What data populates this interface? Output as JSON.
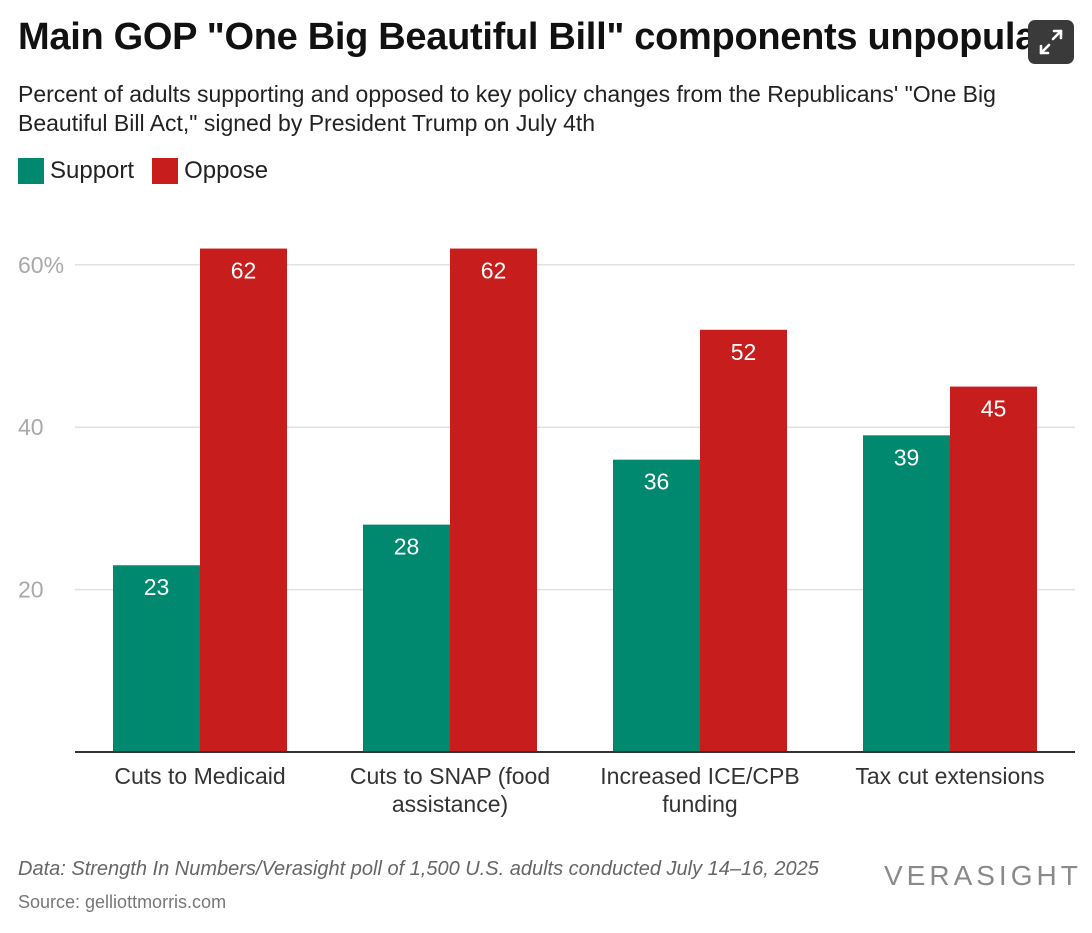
{
  "header": {
    "title": "Main GOP \"One Big Beautiful Bill\" components unpopular",
    "subtitle": "Percent of adults supporting and opposed to key policy changes from the Republicans' \"One Big Beautiful Bill Act,\" signed by President Trump on July 4th",
    "expand_icon": "expand-arrows-icon"
  },
  "legend": {
    "support_label": "Support",
    "oppose_label": "Oppose"
  },
  "colors": {
    "support": "#00896f",
    "oppose": "#c71e1d",
    "grid": "#e2e2e2",
    "axis_text": "#a9a9a9",
    "baseline": "#333333"
  },
  "chart_data": {
    "type": "bar",
    "categories": [
      "Cuts to Medicaid",
      "Cuts to SNAP (food assistance)",
      "Increased ICE/CPB funding",
      "Tax cut extensions"
    ],
    "category_lines": [
      [
        "Cuts to Medicaid"
      ],
      [
        "Cuts to SNAP (food",
        "assistance)"
      ],
      [
        "Increased ICE/CPB",
        "funding"
      ],
      [
        "Tax cut extensions"
      ]
    ],
    "series": [
      {
        "name": "Support",
        "values": [
          23,
          28,
          36,
          39
        ]
      },
      {
        "name": "Oppose",
        "values": [
          62,
          62,
          52,
          45
        ]
      }
    ],
    "yticks": [
      20,
      40,
      60
    ],
    "ytick_labels": [
      "20",
      "40",
      "60%"
    ],
    "ylim": [
      0,
      66
    ],
    "grid": true,
    "legend_position": "top-left",
    "title": "Main GOP \"One Big Beautiful Bill\" components unpopular",
    "xlabel": "",
    "ylabel": ""
  },
  "footer": {
    "note": "Data: Strength In Numbers/Verasight poll of 1,500 U.S. adults conducted July 14–16, 2025",
    "source": "Source: gelliottmorris.com",
    "brand": "VERASIGHT"
  }
}
